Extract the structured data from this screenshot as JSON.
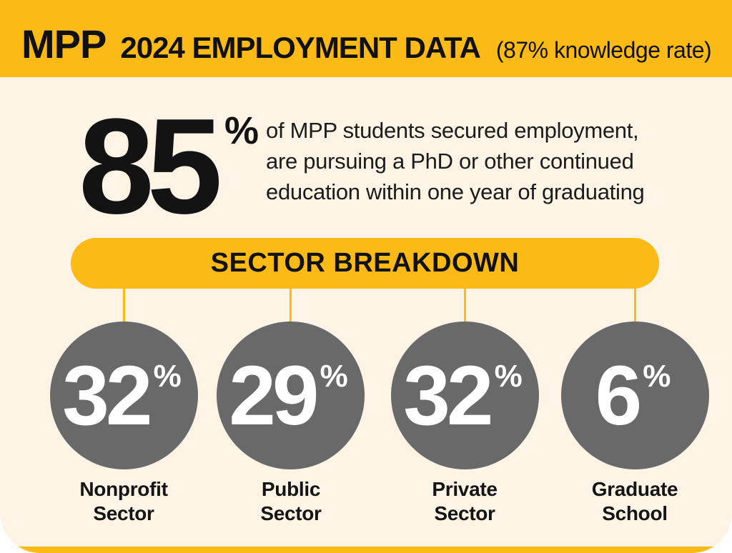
{
  "colors": {
    "gold": "#FBBA16",
    "cream": "#FDF4E6",
    "circle_gray": "#6A6969",
    "text_dark": "#141414",
    "number_white": "#FFFFFF",
    "page_bg": "#FFFFFF"
  },
  "header": {
    "program": "MPP",
    "title": "2024 EMPLOYMENT DATA",
    "knowledge_rate_note": "(87% knowledge rate)"
  },
  "hero": {
    "value": "85",
    "unit": "%",
    "description": "of MPP students secured employment,\nare pursuing a PhD or other continued\neducation within one year of graduating"
  },
  "section": {
    "title": "SECTOR BREAKDOWN"
  },
  "sectors": [
    {
      "value": "32",
      "unit": "%",
      "label": "Nonprofit\nSector"
    },
    {
      "value": "29",
      "unit": "%",
      "label": "Public\nSector"
    },
    {
      "value": "32",
      "unit": "%",
      "label": "Private\nSector"
    },
    {
      "value": "6",
      "unit": "%",
      "label": "Graduate\nSchool"
    }
  ],
  "chart_data": {
    "type": "pie",
    "title": "MPP 2024 EMPLOYMENT DATA",
    "subtitle": "87% knowledge rate",
    "headline_stat": {
      "value": 85,
      "unit": "%",
      "text": "of MPP students secured employment, are pursuing a PhD or other continued education within one year of graduating"
    },
    "categories": [
      "Nonprofit Sector",
      "Public Sector",
      "Private Sector",
      "Graduate School"
    ],
    "values": [
      32,
      29,
      32,
      6
    ],
    "unit": "%",
    "legend_position": "none",
    "notes": "values rendered as gray circles hanging from a gold SECTOR BREAKDOWN banner"
  }
}
